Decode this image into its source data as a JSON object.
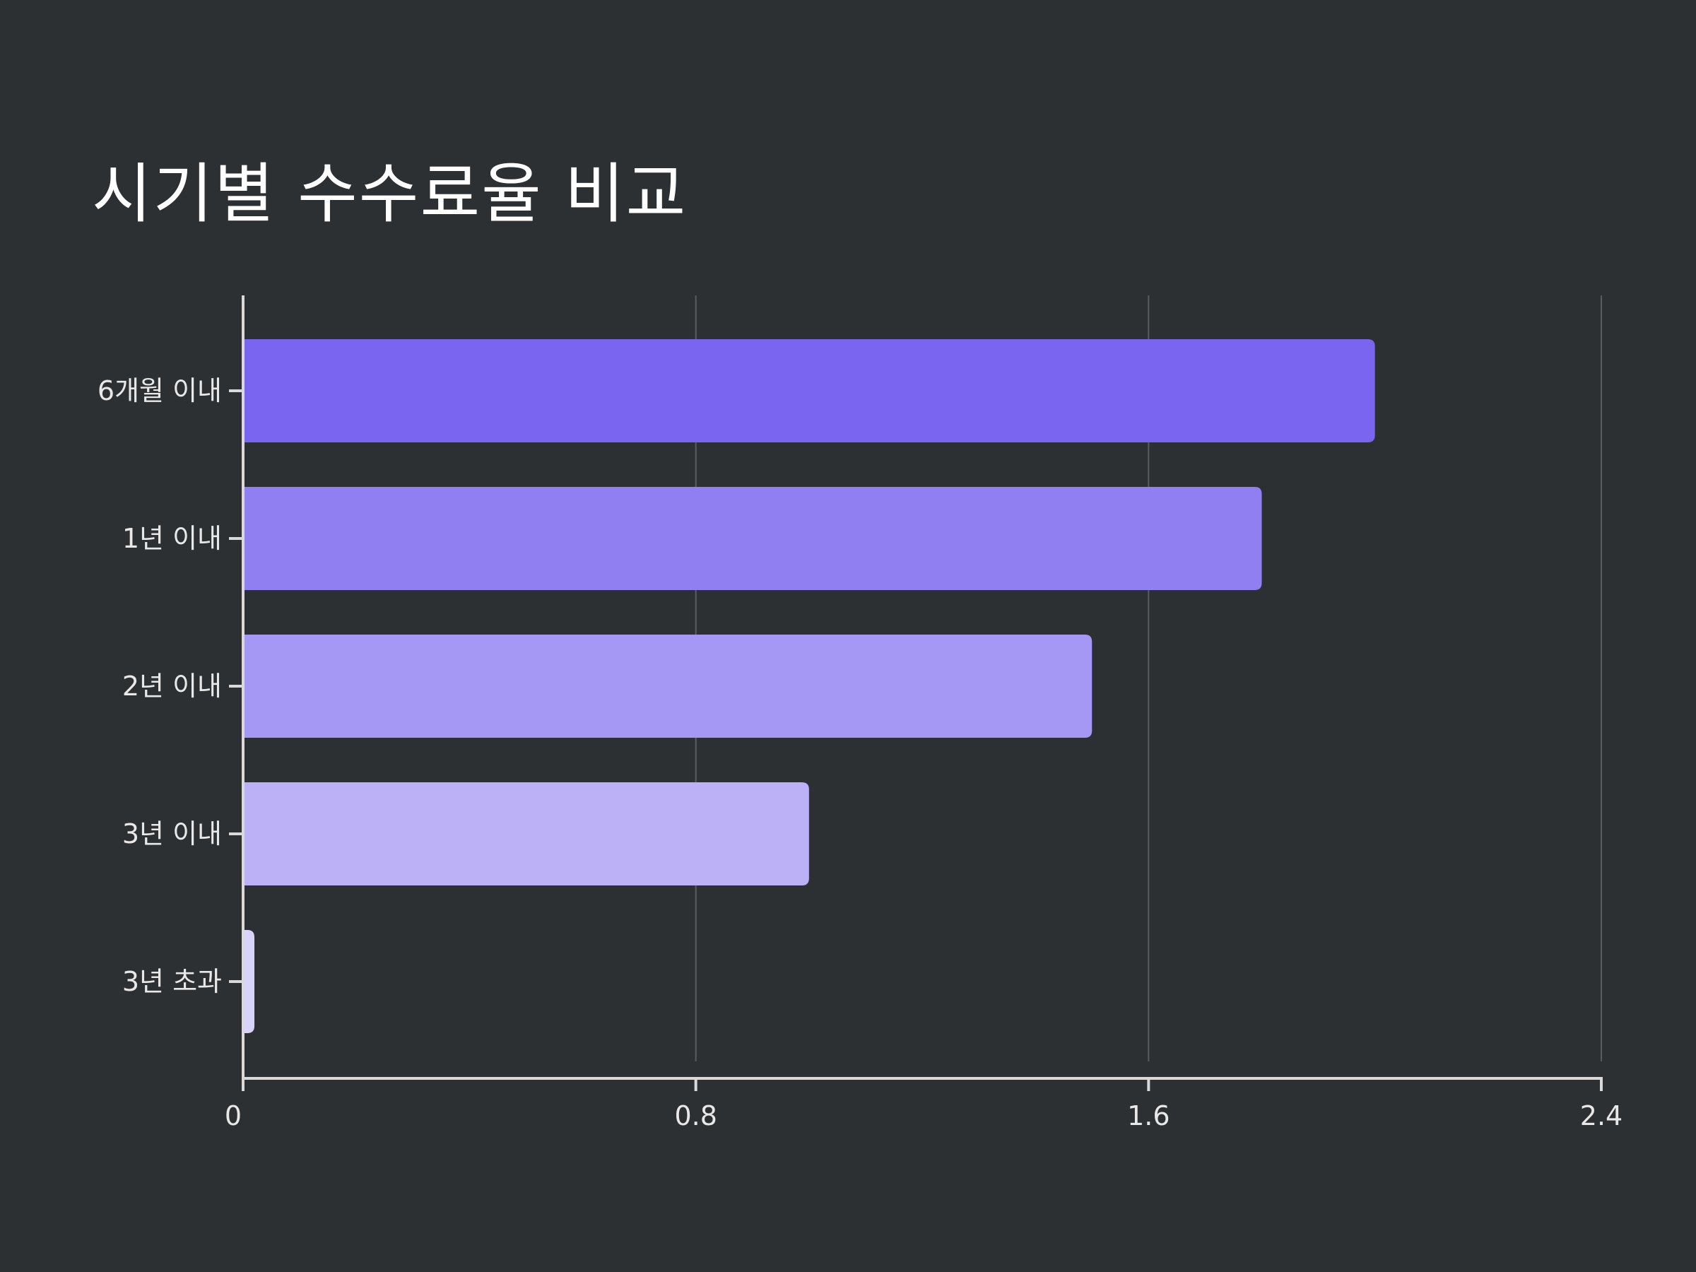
{
  "chart_data": {
    "type": "bar",
    "orientation": "horizontal",
    "title": "시기별 수수료율 비교",
    "xlabel": "",
    "ylabel": "",
    "categories": [
      "6개월 이내",
      "1년 이내",
      "2년 이내",
      "3년 이내",
      "3년 초과"
    ],
    "values": [
      2.0,
      1.8,
      1.5,
      1.0,
      0.02
    ],
    "colors": [
      "#7965f0",
      "#8f7ff0",
      "#a598f4",
      "#bcb1f7",
      "#d9d2fb"
    ],
    "xlim": [
      0,
      2.4
    ],
    "xticks": [
      "0",
      "0.8",
      "1.6",
      "2.4"
    ],
    "xtick_values": [
      0,
      0.8,
      1.6,
      2.4
    ],
    "grid": true,
    "legend": "none"
  }
}
